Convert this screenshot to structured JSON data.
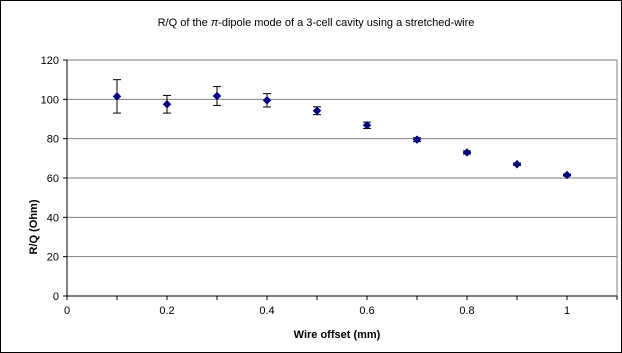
{
  "chart_data": {
    "type": "scatter",
    "title_parts": [
      "R/Q of the ",
      "π",
      "-dipole mode of a 3-cell cavity using a stretched-wire"
    ],
    "xlabel": "Wire offset (mm)",
    "ylabel": "R/Q (Ohm)",
    "xlim": [
      0,
      1.1
    ],
    "ylim": [
      0,
      120
    ],
    "x_ticks": [
      0,
      0.2,
      0.4,
      0.6,
      0.8,
      1
    ],
    "x_tick_labels": [
      "0",
      "0.2",
      "0.4",
      "0.6",
      "0.8",
      "1"
    ],
    "y_ticks": [
      0,
      20,
      40,
      60,
      80,
      100,
      120
    ],
    "y_tick_labels": [
      "0",
      "20",
      "40",
      "60",
      "80",
      "100",
      "120"
    ],
    "grid": "horizontal",
    "series": [
      {
        "x": [
          0.1,
          0.2,
          0.3,
          0.4,
          0.5,
          0.6,
          0.7,
          0.8,
          0.9,
          1.0
        ],
        "y": [
          101.5,
          97.5,
          101.7,
          99.5,
          94.2,
          86.8,
          79.5,
          73.0,
          67.0,
          61.5
        ],
        "err": [
          8.5,
          4.5,
          4.8,
          3.4,
          2.0,
          1.6,
          1.0,
          0.8,
          0.6,
          0.5
        ],
        "color": "#000080",
        "marker": "diamond"
      }
    ]
  }
}
